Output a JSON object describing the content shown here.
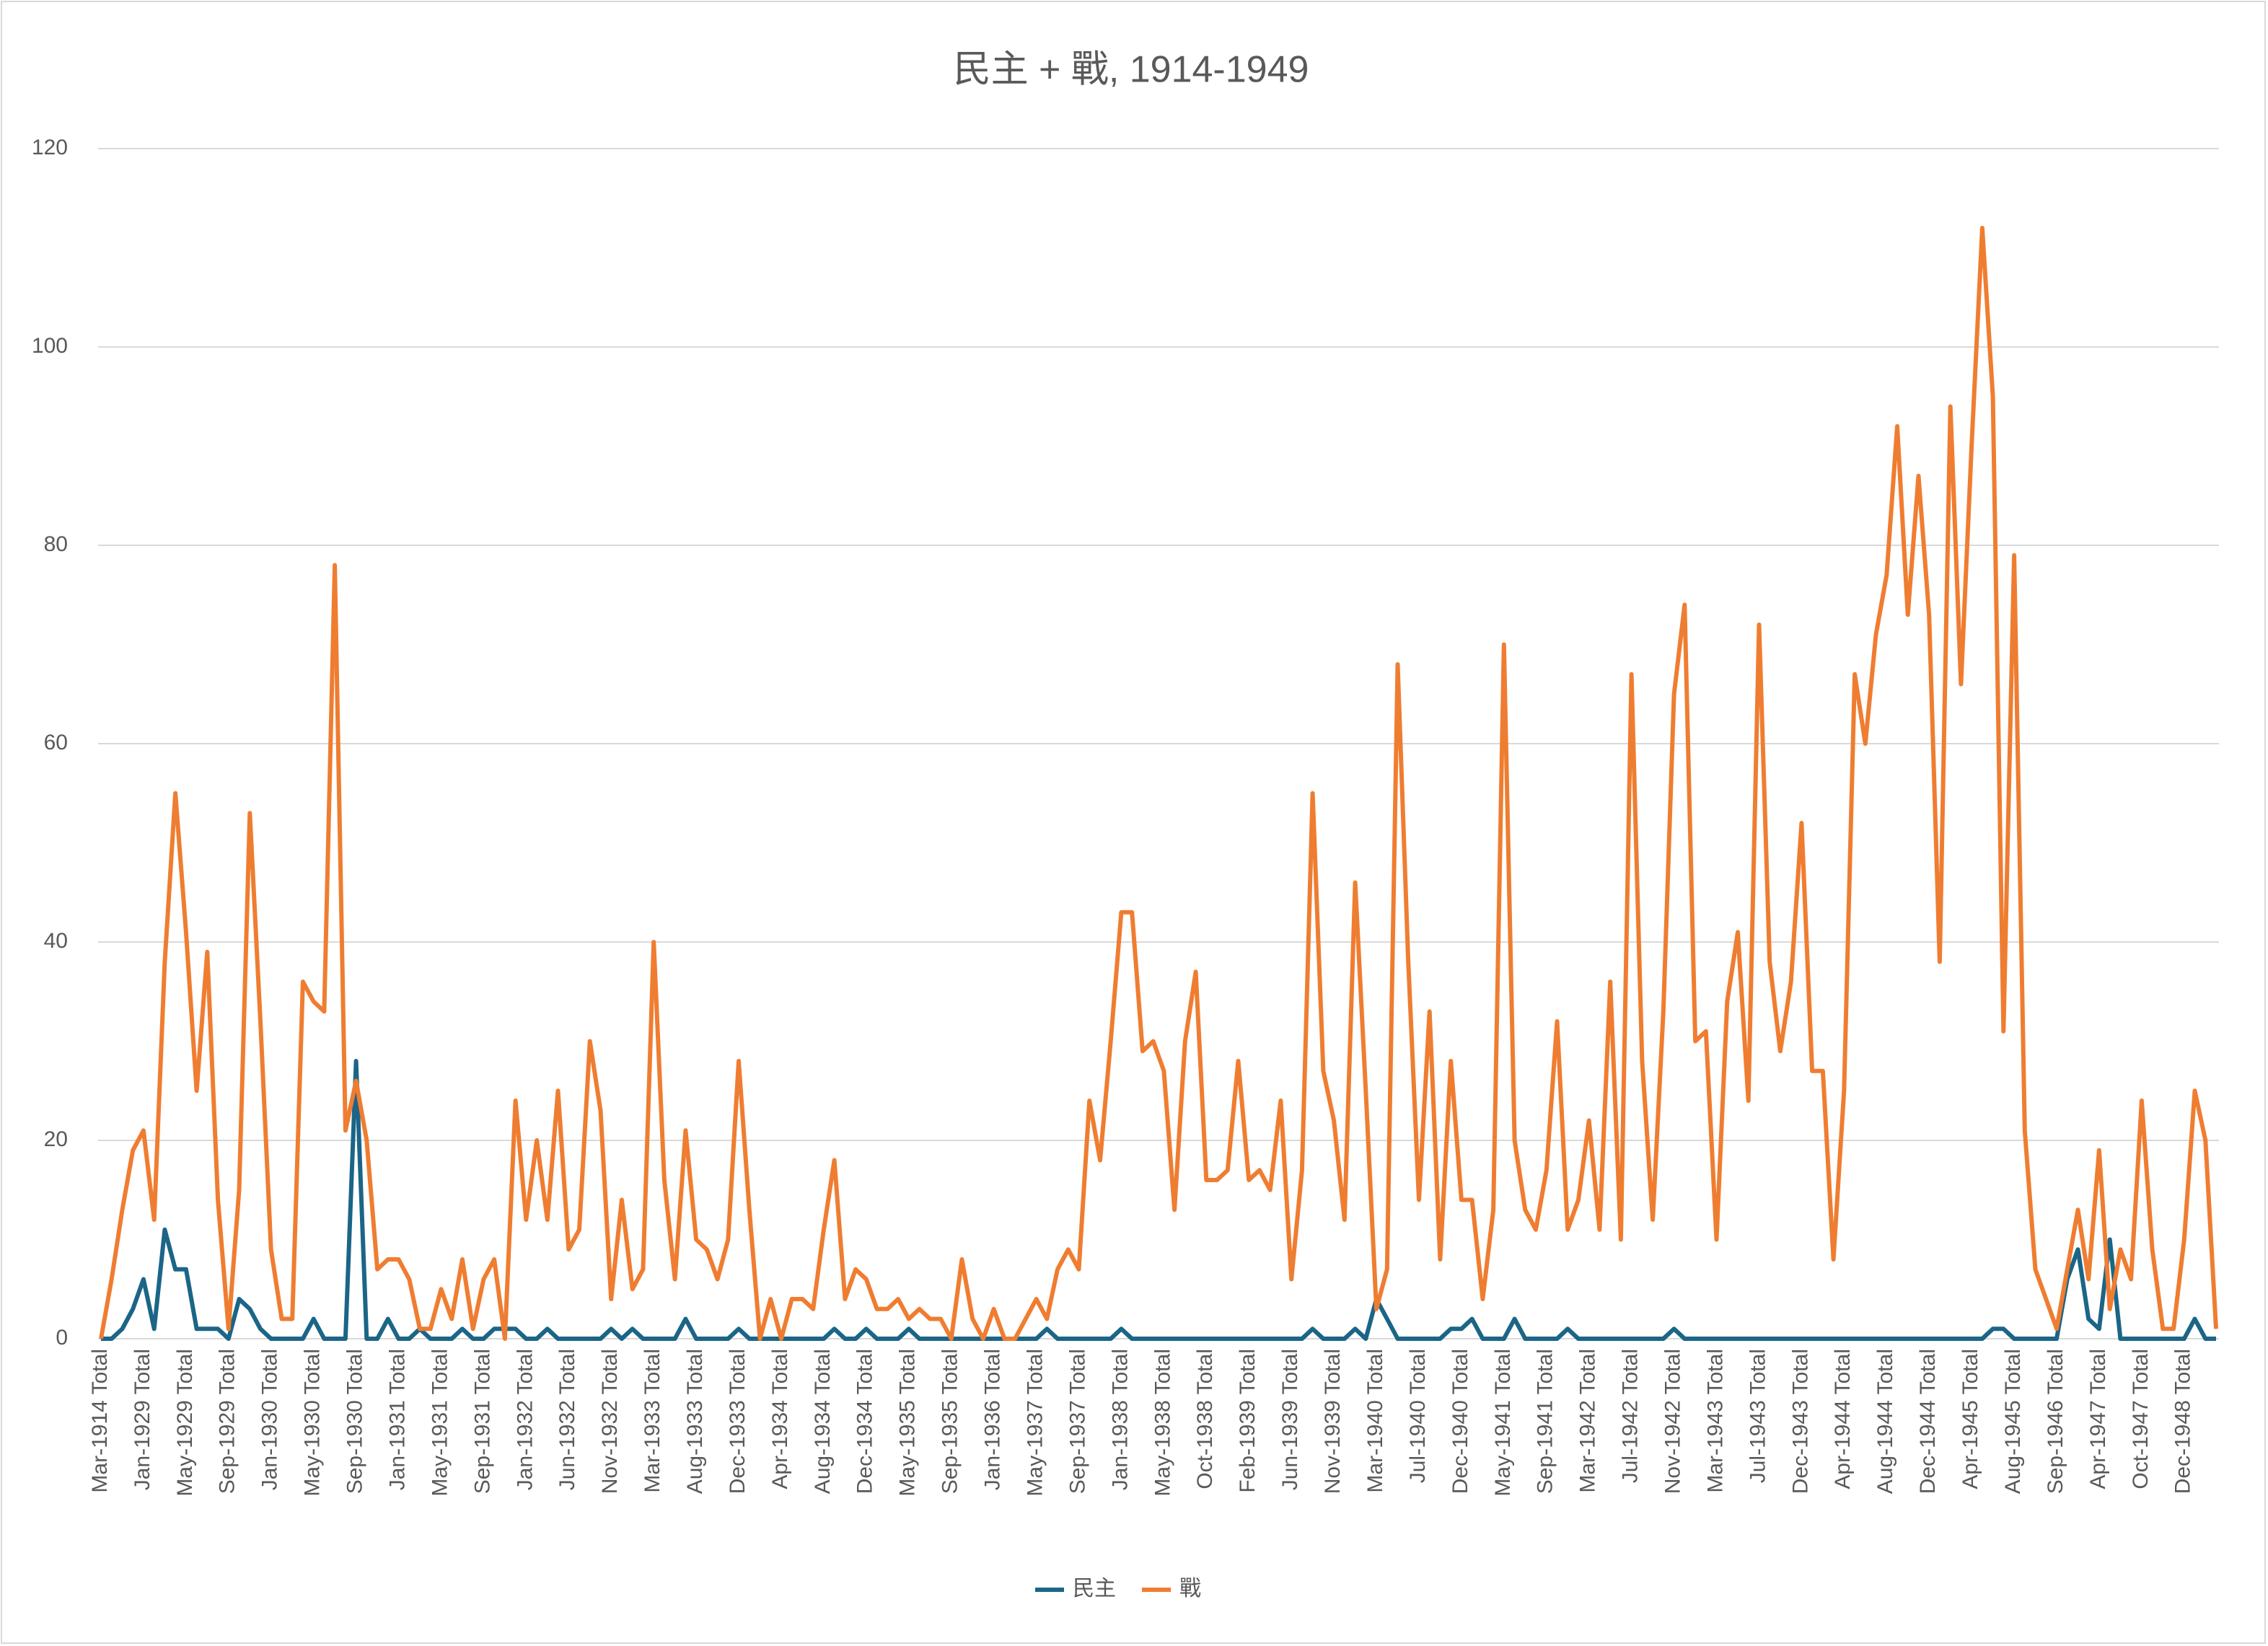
{
  "chart_data": {
    "type": "line",
    "title": "民主 + 戰, 1914-1949",
    "categories": [
      "Mar-1914 Total",
      null,
      null,
      null,
      "Jan-1929 Total",
      null,
      null,
      null,
      "May-1929 Total",
      null,
      null,
      null,
      "Sep-1929 Total",
      null,
      null,
      null,
      "Jan-1930 Total",
      null,
      null,
      null,
      "May-1930 Total",
      null,
      null,
      null,
      "Sep-1930 Total",
      null,
      null,
      null,
      "Jan-1931 Total",
      null,
      null,
      null,
      "May-1931 Total",
      null,
      null,
      null,
      "Sep-1931 Total",
      null,
      null,
      null,
      "Jan-1932 Total",
      null,
      null,
      null,
      "Jun-1932 Total",
      null,
      null,
      null,
      "Nov-1932 Total",
      null,
      null,
      null,
      "Mar-1933 Total",
      null,
      null,
      null,
      "Aug-1933 Total",
      null,
      null,
      null,
      "Dec-1933 Total",
      null,
      null,
      null,
      "Apr-1934 Total",
      null,
      null,
      null,
      "Aug-1934 Total",
      null,
      null,
      null,
      "Dec-1934 Total",
      null,
      null,
      null,
      "May-1935 Total",
      null,
      null,
      null,
      "Sep-1935 Total",
      null,
      null,
      null,
      "Jan-1936 Total",
      null,
      null,
      null,
      "May-1937 Total",
      null,
      null,
      null,
      "Sep-1937 Total",
      null,
      null,
      null,
      "Jan-1938 Total",
      null,
      null,
      null,
      "May-1938 Total",
      null,
      null,
      null,
      "Oct-1938 Total",
      null,
      null,
      null,
      "Feb-1939 Total",
      null,
      null,
      null,
      "Jun-1939 Total",
      null,
      null,
      null,
      "Nov-1939 Total",
      null,
      null,
      null,
      "Mar-1940 Total",
      null,
      null,
      null,
      "Jul-1940 Total",
      null,
      null,
      null,
      "Dec-1940 Total",
      null,
      null,
      null,
      "May-1941 Total",
      null,
      null,
      null,
      "Sep-1941 Total",
      null,
      null,
      null,
      "Mar-1942 Total",
      null,
      null,
      null,
      "Jul-1942 Total",
      null,
      null,
      null,
      "Nov-1942 Total",
      null,
      null,
      null,
      "Mar-1943 Total",
      null,
      null,
      null,
      "Jul-1943 Total",
      null,
      null,
      null,
      "Dec-1943 Total",
      null,
      null,
      null,
      "Apr-1944 Total",
      null,
      null,
      null,
      "Aug-1944 Total",
      null,
      null,
      null,
      "Dec-1944 Total",
      null,
      null,
      null,
      "Apr-1945 Total",
      null,
      null,
      null,
      "Aug-1945 Total",
      null,
      null,
      null,
      "Sep-1946 Total",
      null,
      null,
      null,
      "Apr-1947 Total",
      null,
      null,
      null,
      "Oct-1947 Total",
      null,
      null,
      null,
      "Dec-1948 Total",
      null,
      null,
      null
    ],
    "series": [
      {
        "name": "民主",
        "color": "#1b6587",
        "values": [
          0,
          0,
          1,
          3,
          6,
          1,
          11,
          7,
          7,
          1,
          1,
          1,
          0,
          4,
          3,
          1,
          0,
          0,
          0,
          0,
          2,
          0,
          0,
          0,
          28,
          0,
          0,
          2,
          0,
          0,
          1,
          0,
          0,
          0,
          1,
          0,
          0,
          1,
          1,
          1,
          0,
          0,
          1,
          0,
          0,
          0,
          0,
          0,
          1,
          0,
          1,
          0,
          0,
          0,
          0,
          2,
          0,
          0,
          0,
          0,
          1,
          0,
          0,
          0,
          0,
          0,
          0,
          0,
          0,
          1,
          0,
          0,
          1,
          0,
          0,
          0,
          1,
          0,
          0,
          0,
          0,
          0,
          0,
          0,
          0,
          0,
          0,
          0,
          0,
          1,
          0,
          0,
          0,
          0,
          0,
          0,
          1,
          0,
          0,
          0,
          0,
          0,
          0,
          0,
          0,
          0,
          0,
          0,
          0,
          0,
          0,
          0,
          0,
          0,
          1,
          0,
          0,
          0,
          1,
          0,
          4,
          2,
          0,
          0,
          0,
          0,
          0,
          1,
          1,
          2,
          0,
          0,
          0,
          2,
          0,
          0,
          0,
          0,
          1,
          0,
          0,
          0,
          0,
          0,
          0,
          0,
          0,
          0,
          1,
          0,
          0,
          0,
          0,
          0,
          0,
          0,
          0,
          0,
          0,
          0,
          0,
          0,
          0,
          0,
          0,
          0,
          0,
          0,
          0,
          0,
          0,
          0,
          0,
          0,
          0,
          0,
          0,
          0,
          1,
          1,
          0,
          0,
          0,
          0,
          0,
          6,
          9,
          2,
          1,
          10,
          0,
          0,
          0,
          0,
          0,
          0,
          0,
          2,
          0,
          0
        ]
      },
      {
        "name": "戰",
        "color": "#ef7d31",
        "values": [
          0,
          6,
          13,
          19,
          21,
          12,
          38,
          55,
          41,
          25,
          39,
          14,
          1,
          15,
          53,
          32,
          9,
          2,
          2,
          36,
          34,
          33,
          78,
          21,
          26,
          20,
          7,
          8,
          8,
          6,
          1,
          1,
          5,
          2,
          8,
          1,
          6,
          8,
          0,
          24,
          12,
          20,
          12,
          25,
          9,
          11,
          30,
          23,
          4,
          14,
          5,
          7,
          40,
          16,
          6,
          21,
          10,
          9,
          6,
          10,
          28,
          13,
          0,
          4,
          0,
          4,
          4,
          3,
          11,
          18,
          4,
          7,
          6,
          3,
          3,
          4,
          2,
          3,
          2,
          2,
          0,
          8,
          2,
          0,
          3,
          0,
          0,
          2,
          4,
          2,
          7,
          9,
          7,
          24,
          18,
          30,
          43,
          43,
          29,
          30,
          27,
          13,
          30,
          37,
          16,
          16,
          17,
          28,
          16,
          17,
          15,
          24,
          6,
          17,
          55,
          27,
          22,
          12,
          46,
          25,
          3,
          7,
          68,
          38,
          14,
          33,
          8,
          28,
          14,
          14,
          4,
          13,
          70,
          20,
          13,
          11,
          17,
          32,
          11,
          14,
          22,
          11,
          36,
          10,
          67,
          28,
          12,
          33,
          65,
          74,
          30,
          31,
          10,
          34,
          41,
          24,
          72,
          38,
          29,
          36,
          52,
          27,
          27,
          8,
          25,
          67,
          60,
          71,
          77,
          92,
          73,
          87,
          73,
          38,
          94,
          66,
          90,
          112,
          95,
          31,
          79,
          21,
          7,
          4,
          1,
          7,
          13,
          6,
          19,
          3,
          9,
          6,
          24,
          9,
          1,
          1,
          10,
          25,
          20,
          1
        ]
      }
    ],
    "ylim": [
      0,
      120
    ],
    "yticks": [
      0,
      20,
      40,
      60,
      80,
      100,
      120
    ],
    "grid": true,
    "legend": "bottom"
  }
}
